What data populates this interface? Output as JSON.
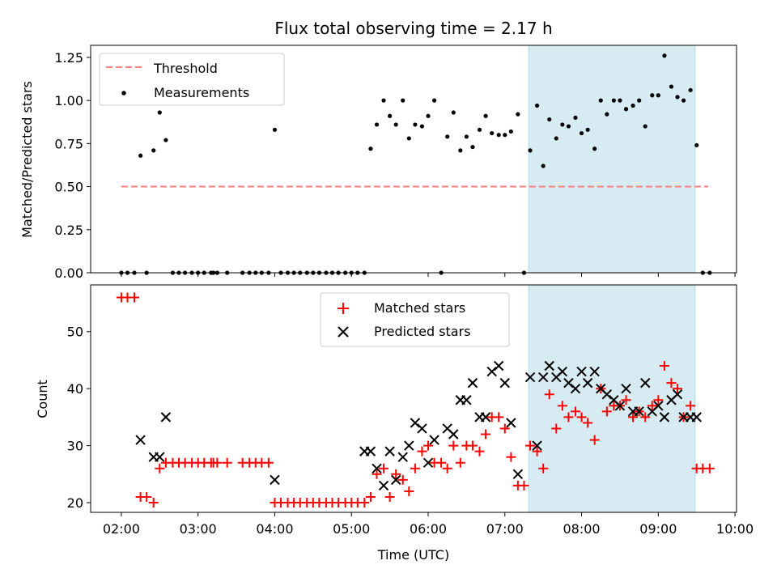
{
  "chart_data": {
    "title": "Flux total observing time = 2.17 h",
    "xlabel": "Time (UTC)",
    "x_ticks": [
      "02:00",
      "03:00",
      "04:00",
      "05:00",
      "06:00",
      "07:00",
      "08:00",
      "09:00",
      "10:00"
    ],
    "x_range_hours": [
      1.6,
      10.02
    ],
    "highlight_span_hours": [
      7.31,
      9.48
    ],
    "highlight_color": "#add8e6",
    "panels": [
      {
        "type": "scatter",
        "ylabel": "Matched/Predicted stars",
        "ylim": [
          0,
          1.32
        ],
        "y_ticks": [
          "0.00",
          "0.25",
          "0.50",
          "0.75",
          "1.00",
          "1.25"
        ],
        "legend_position": "upper left",
        "threshold": {
          "name": "Threshold",
          "value": 0.5,
          "x_range": [
            2.0,
            9.65
          ],
          "color": "#ff7f7f",
          "style": "dashed"
        },
        "series": [
          {
            "name": "Measurements",
            "color": "#000000",
            "marker": "dot",
            "points": [
              [
                2.0,
                0
              ],
              [
                2.08,
                0
              ],
              [
                2.17,
                0
              ],
              [
                2.25,
                0.68
              ],
              [
                2.33,
                0
              ],
              [
                2.42,
                0.71
              ],
              [
                2.5,
                0.93
              ],
              [
                2.58,
                0.77
              ],
              [
                2.67,
                0
              ],
              [
                2.75,
                0
              ],
              [
                2.83,
                0
              ],
              [
                2.92,
                0
              ],
              [
                3.0,
                0
              ],
              [
                3.08,
                0
              ],
              [
                3.17,
                0
              ],
              [
                3.2,
                0
              ],
              [
                3.25,
                0
              ],
              [
                3.38,
                0
              ],
              [
                3.58,
                0
              ],
              [
                3.67,
                0
              ],
              [
                3.75,
                0
              ],
              [
                3.83,
                0
              ],
              [
                3.92,
                0
              ],
              [
                4.0,
                0.83
              ],
              [
                4.08,
                0
              ],
              [
                4.17,
                0
              ],
              [
                4.25,
                0
              ],
              [
                4.33,
                0
              ],
              [
                4.42,
                0
              ],
              [
                4.5,
                0
              ],
              [
                4.58,
                0
              ],
              [
                4.67,
                0
              ],
              [
                4.75,
                0
              ],
              [
                4.83,
                0
              ],
              [
                4.92,
                0
              ],
              [
                5.0,
                0
              ],
              [
                5.08,
                0
              ],
              [
                5.17,
                0
              ],
              [
                5.25,
                0.72
              ],
              [
                5.33,
                0.86
              ],
              [
                5.42,
                1.0
              ],
              [
                5.5,
                0.91
              ],
              [
                5.58,
                0.86
              ],
              [
                5.67,
                1.0
              ],
              [
                5.75,
                0.78
              ],
              [
                5.83,
                0.86
              ],
              [
                5.92,
                0.85
              ],
              [
                6.0,
                0.91
              ],
              [
                6.08,
                1.0
              ],
              [
                6.17,
                0
              ],
              [
                6.25,
                0.79
              ],
              [
                6.33,
                0.93
              ],
              [
                6.42,
                0.71
              ],
              [
                6.5,
                0.79
              ],
              [
                6.58,
                0.73
              ],
              [
                6.67,
                0.83
              ],
              [
                6.75,
                0.91
              ],
              [
                6.83,
                0.81
              ],
              [
                6.92,
                0.8
              ],
              [
                7.0,
                0.8
              ],
              [
                7.08,
                0.82
              ],
              [
                7.17,
                0.92
              ],
              [
                7.25,
                0
              ],
              [
                7.33,
                0.71
              ],
              [
                7.42,
                0.97
              ],
              [
                7.5,
                0.62
              ],
              [
                7.58,
                0.89
              ],
              [
                7.67,
                0.78
              ],
              [
                7.75,
                0.86
              ],
              [
                7.83,
                0.85
              ],
              [
                7.92,
                0.9
              ],
              [
                8.0,
                0.81
              ],
              [
                8.08,
                0.83
              ],
              [
                8.17,
                0.72
              ],
              [
                8.25,
                1.0
              ],
              [
                8.33,
                0.92
              ],
              [
                8.42,
                1.0
              ],
              [
                8.5,
                1.0
              ],
              [
                8.58,
                0.95
              ],
              [
                8.67,
                0.97
              ],
              [
                8.75,
                1.0
              ],
              [
                8.83,
                0.85
              ],
              [
                8.92,
                1.03
              ],
              [
                9.0,
                1.03
              ],
              [
                9.08,
                1.26
              ],
              [
                9.17,
                1.08
              ],
              [
                9.25,
                1.02
              ],
              [
                9.33,
                1.0
              ],
              [
                9.42,
                1.06
              ],
              [
                9.5,
                0.74
              ],
              [
                9.58,
                0
              ],
              [
                9.67,
                0
              ]
            ]
          }
        ]
      },
      {
        "type": "scatter",
        "ylabel": "Count",
        "ylim": [
          18.3,
          58.2
        ],
        "y_ticks": [
          "20",
          "30",
          "40",
          "50"
        ],
        "legend_position": "upper center",
        "series": [
          {
            "name": "Matched stars",
            "color": "#ff0000",
            "marker": "plus",
            "points": [
              [
                2.0,
                56
              ],
              [
                2.08,
                56
              ],
              [
                2.17,
                56
              ],
              [
                2.25,
                21
              ],
              [
                2.33,
                21
              ],
              [
                2.42,
                20
              ],
              [
                2.5,
                26
              ],
              [
                2.58,
                27
              ],
              [
                2.67,
                27
              ],
              [
                2.75,
                27
              ],
              [
                2.83,
                27
              ],
              [
                2.92,
                27
              ],
              [
                3.0,
                27
              ],
              [
                3.08,
                27
              ],
              [
                3.17,
                27
              ],
              [
                3.2,
                27
              ],
              [
                3.25,
                27
              ],
              [
                3.38,
                27
              ],
              [
                3.58,
                27
              ],
              [
                3.67,
                27
              ],
              [
                3.75,
                27
              ],
              [
                3.83,
                27
              ],
              [
                3.92,
                27
              ],
              [
                4.0,
                20
              ],
              [
                4.08,
                20
              ],
              [
                4.17,
                20
              ],
              [
                4.25,
                20
              ],
              [
                4.33,
                20
              ],
              [
                4.42,
                20
              ],
              [
                4.5,
                20
              ],
              [
                4.58,
                20
              ],
              [
                4.67,
                20
              ],
              [
                4.75,
                20
              ],
              [
                4.83,
                20
              ],
              [
                4.92,
                20
              ],
              [
                5.0,
                20
              ],
              [
                5.08,
                20
              ],
              [
                5.17,
                20
              ],
              [
                5.25,
                21
              ],
              [
                5.33,
                25
              ],
              [
                5.42,
                26
              ],
              [
                5.5,
                21
              ],
              [
                5.58,
                25
              ],
              [
                5.67,
                24
              ],
              [
                5.75,
                22
              ],
              [
                5.83,
                26
              ],
              [
                5.92,
                29
              ],
              [
                6.0,
                30
              ],
              [
                6.08,
                27
              ],
              [
                6.17,
                27
              ],
              [
                6.25,
                26
              ],
              [
                6.33,
                30
              ],
              [
                6.42,
                27
              ],
              [
                6.5,
                30
              ],
              [
                6.58,
                30
              ],
              [
                6.67,
                29
              ],
              [
                6.75,
                32
              ],
              [
                6.83,
                35
              ],
              [
                6.92,
                35
              ],
              [
                7.0,
                33
              ],
              [
                7.08,
                28
              ],
              [
                7.17,
                23
              ],
              [
                7.25,
                23
              ],
              [
                7.33,
                30
              ],
              [
                7.42,
                29
              ],
              [
                7.5,
                26
              ],
              [
                7.58,
                39
              ],
              [
                7.67,
                33
              ],
              [
                7.75,
                37
              ],
              [
                7.83,
                35
              ],
              [
                7.92,
                36
              ],
              [
                8.0,
                35
              ],
              [
                8.08,
                34
              ],
              [
                8.17,
                31
              ],
              [
                8.25,
                40
              ],
              [
                8.33,
                36
              ],
              [
                8.42,
                37
              ],
              [
                8.5,
                37
              ],
              [
                8.58,
                38
              ],
              [
                8.67,
                35
              ],
              [
                8.75,
                36
              ],
              [
                8.83,
                35
              ],
              [
                8.92,
                37
              ],
              [
                9.0,
                38
              ],
              [
                9.08,
                44
              ],
              [
                9.17,
                41
              ],
              [
                9.25,
                40
              ],
              [
                9.33,
                35
              ],
              [
                9.42,
                37
              ],
              [
                9.5,
                26
              ],
              [
                9.58,
                26
              ],
              [
                9.67,
                26
              ]
            ]
          },
          {
            "name": "Predicted stars",
            "color": "#000000",
            "marker": "x",
            "points": [
              [
                2.25,
                31
              ],
              [
                2.42,
                28
              ],
              [
                2.5,
                28
              ],
              [
                2.58,
                35
              ],
              [
                4.0,
                24
              ],
              [
                5.17,
                29
              ],
              [
                5.25,
                29
              ],
              [
                5.33,
                26
              ],
              [
                5.42,
                23
              ],
              [
                5.5,
                29
              ],
              [
                5.58,
                24
              ],
              [
                5.67,
                28
              ],
              [
                5.75,
                30
              ],
              [
                5.83,
                34
              ],
              [
                5.92,
                33
              ],
              [
                6.0,
                27
              ],
              [
                6.08,
                31
              ],
              [
                6.25,
                33
              ],
              [
                6.33,
                32
              ],
              [
                6.42,
                38
              ],
              [
                6.5,
                38
              ],
              [
                6.58,
                41
              ],
              [
                6.67,
                35
              ],
              [
                6.75,
                35
              ],
              [
                6.83,
                43
              ],
              [
                6.92,
                44
              ],
              [
                7.0,
                41
              ],
              [
                7.08,
                34
              ],
              [
                7.17,
                25
              ],
              [
                7.33,
                42
              ],
              [
                7.42,
                30
              ],
              [
                7.5,
                42
              ],
              [
                7.58,
                44
              ],
              [
                7.67,
                42
              ],
              [
                7.75,
                43
              ],
              [
                7.83,
                41
              ],
              [
                7.92,
                40
              ],
              [
                8.0,
                43
              ],
              [
                8.08,
                41
              ],
              [
                8.17,
                43
              ],
              [
                8.25,
                40
              ],
              [
                8.33,
                39
              ],
              [
                8.42,
                38
              ],
              [
                8.5,
                37
              ],
              [
                8.58,
                40
              ],
              [
                8.67,
                36
              ],
              [
                8.75,
                36
              ],
              [
                8.83,
                41
              ],
              [
                8.92,
                36
              ],
              [
                9.0,
                37
              ],
              [
                9.08,
                35
              ],
              [
                9.17,
                38
              ],
              [
                9.25,
                39
              ],
              [
                9.33,
                35
              ],
              [
                9.42,
                35
              ],
              [
                9.5,
                35
              ]
            ]
          }
        ]
      }
    ]
  }
}
